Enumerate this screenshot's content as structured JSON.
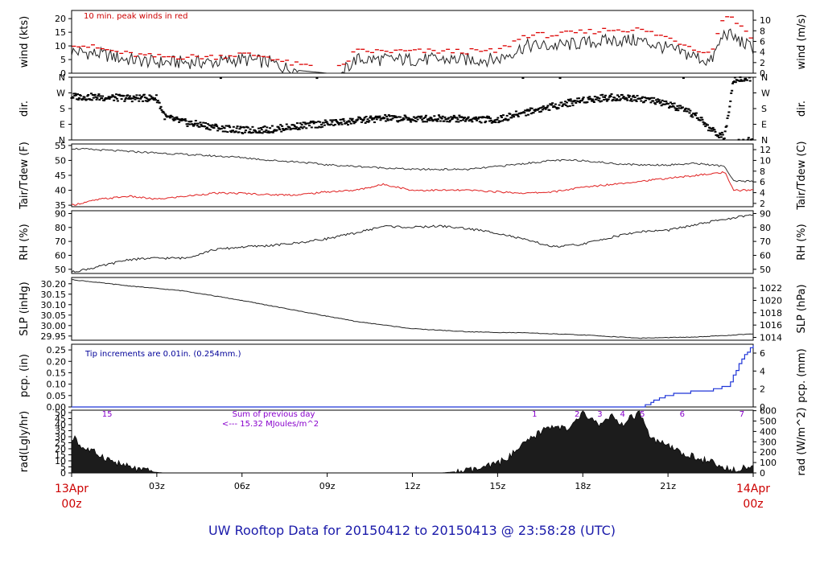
{
  "title": "UW Rooftop Data for 20150412  to  20150413 @ 23:58:28  (UTC)",
  "x_axis": {
    "hour_ticks": [
      "03z",
      "06z",
      "09z",
      "12z",
      "15z",
      "18z",
      "21z"
    ],
    "start_date": "13Apr",
    "start_time": "00z",
    "end_date": "14Apr",
    "end_time": "00z"
  },
  "colors": {
    "frame": "#000000",
    "temp": "#333333",
    "dewpoint": "#e02020",
    "peak": "#dd0000",
    "precip": "#1f35d8",
    "note_purple": "#8800cc",
    "title": "#1a1aaa"
  },
  "chart_data": [
    {
      "id": "wind",
      "type": "line",
      "ylabel": "wind (kts)",
      "ylabel_right": "wind (m/s)",
      "ylim": [
        0,
        23
      ],
      "yticks": [
        0,
        5,
        10,
        15,
        20
      ],
      "yticks_right": [
        "0",
        "2",
        "4",
        "6",
        "8",
        "10"
      ],
      "annotation": "10 min. peak winds in red",
      "x_hours": [
        0,
        1,
        2,
        3,
        4,
        5,
        6,
        7,
        7.5,
        8,
        9,
        9.5,
        10,
        11,
        12,
        13,
        14,
        15,
        16,
        17,
        18,
        19,
        20,
        21,
        22,
        22.5,
        23,
        23.5,
        24
      ],
      "series": [
        {
          "name": "wind",
          "values": [
            8,
            7,
            5,
            4,
            4,
            4,
            5,
            4,
            2,
            1,
            0,
            0,
            5,
            5,
            5,
            5,
            5,
            5,
            10,
            10,
            11,
            12,
            12,
            9,
            6,
            4,
            15,
            12,
            9
          ]
        },
        {
          "name": "peak",
          "values": [
            11,
            9,
            7,
            6,
            6,
            6,
            7,
            6,
            4,
            3,
            2,
            2,
            8,
            8,
            8,
            8,
            8,
            8,
            14,
            14,
            15,
            16,
            16,
            13,
            9,
            7,
            22,
            18,
            13
          ]
        }
      ]
    },
    {
      "id": "direction",
      "type": "scatter",
      "ylabel": "dir.",
      "ylabel_right": "dir.",
      "ytick_labels": [
        "N",
        "E",
        "S",
        "W",
        "N"
      ],
      "ylim": [
        0,
        360
      ],
      "x_hours": [
        0,
        1,
        2,
        3,
        3.3,
        4,
        5,
        6,
        7,
        8,
        9,
        10,
        11,
        12,
        13,
        14,
        15,
        16,
        17,
        18,
        19,
        20,
        21,
        22,
        22.5,
        23,
        23.3,
        24
      ],
      "series": [
        {
          "name": "direction",
          "values": [
            250,
            245,
            240,
            240,
            130,
            100,
            75,
            55,
            60,
            80,
            95,
            110,
            125,
            120,
            125,
            120,
            115,
            160,
            195,
            230,
            245,
            240,
            205,
            140,
            60,
            15,
            350,
            355
          ]
        }
      ]
    },
    {
      "id": "temperature",
      "type": "line",
      "ylabel": "Tair/Tdew (F)",
      "ylabel_right": "Tair/Tdew (C)",
      "ylim": [
        34.5,
        55.5
      ],
      "yticks": [
        35,
        40,
        45,
        50,
        55
      ],
      "yticks_right": [
        "2",
        "4",
        "6",
        "8",
        "10",
        "12"
      ],
      "x_hours": [
        0,
        1,
        2,
        3,
        4,
        5,
        6,
        7,
        8,
        9,
        10,
        11,
        12,
        13,
        14,
        15,
        16,
        17,
        18,
        19,
        20,
        21,
        22,
        23,
        23.3,
        24
      ],
      "series": [
        {
          "name": "Tair",
          "values": [
            54,
            53.5,
            53,
            52.5,
            52,
            51.5,
            51,
            50,
            49.5,
            48.5,
            48,
            47.5,
            47,
            47,
            47,
            48,
            49,
            50,
            50,
            49,
            48.5,
            48.5,
            49,
            48,
            43,
            43
          ]
        },
        {
          "name": "Tdew",
          "values": [
            35,
            37,
            38,
            37,
            38,
            39,
            39,
            38.5,
            38.5,
            39.5,
            40,
            42,
            40,
            40,
            40,
            39.5,
            39,
            39.5,
            41,
            42,
            43,
            44,
            45,
            46,
            40,
            40
          ]
        }
      ]
    },
    {
      "id": "rh",
      "type": "line",
      "ylabel": "RH (%)",
      "ylabel_right": "RH (%)",
      "ylim": [
        47,
        92
      ],
      "yticks": [
        50,
        60,
        70,
        80,
        90
      ],
      "yticks_right": [
        "50",
        "60",
        "70",
        "80",
        "90"
      ],
      "x_hours": [
        0,
        1,
        2,
        3,
        4,
        5,
        6,
        7,
        8,
        9,
        10,
        11,
        12,
        13,
        14,
        15,
        16,
        17,
        18,
        19,
        20,
        21,
        22,
        23,
        24
      ],
      "series": [
        {
          "name": "RH",
          "values": [
            48,
            52,
            57,
            58,
            58,
            64,
            66,
            67,
            69,
            72,
            76,
            81,
            80,
            81,
            79,
            76,
            71,
            66,
            68,
            73,
            77,
            78,
            82,
            86,
            89
          ]
        }
      ]
    },
    {
      "id": "slp",
      "type": "line",
      "ylabel": "SLP (inHg)",
      "ylabel_right": "SLP (hPa)",
      "ylim": [
        29.93,
        30.23
      ],
      "yticks": [
        29.95,
        30.0,
        30.05,
        30.1,
        30.15,
        30.2
      ],
      "yticks_right": [
        "1014",
        "1016",
        "1018",
        "1020",
        "1022"
      ],
      "x_hours": [
        0,
        2,
        4,
        6,
        8,
        10,
        12,
        14,
        16,
        18,
        20,
        22,
        24
      ],
      "series": [
        {
          "name": "SLP",
          "values": [
            30.22,
            30.19,
            30.165,
            30.12,
            30.07,
            30.02,
            29.985,
            29.97,
            29.965,
            29.955,
            29.94,
            29.945,
            29.96
          ]
        }
      ]
    },
    {
      "id": "precip",
      "type": "line",
      "ylabel": "pcp. (in)",
      "ylabel_right": "pcp. (mm)",
      "ylim": [
        0,
        0.275
      ],
      "yticks": [
        0,
        0.05,
        0.1,
        0.15,
        0.2,
        0.25
      ],
      "yticks_right": [
        "0",
        "2",
        "4",
        "6"
      ],
      "annotation": "Tip increments are 0.01in. (0.254mm.)",
      "x_hours": [
        0,
        20.1,
        20.7,
        21.3,
        22.3,
        23.1,
        23.6,
        23.9,
        24
      ],
      "series": [
        {
          "name": "precip",
          "values": [
            0,
            0,
            0.04,
            0.06,
            0.07,
            0.09,
            0.21,
            0.26,
            0.27
          ]
        }
      ]
    },
    {
      "id": "radiation",
      "type": "area",
      "ylabel": "rad(Lgly/hr)",
      "ylabel_right": "rad (W/m^2)",
      "ylim": [
        0,
        52
      ],
      "yticks": [
        0,
        5,
        10,
        15,
        20,
        25,
        30,
        35,
        40,
        45,
        50
      ],
      "yticks_right": [
        "0",
        "100",
        "200",
        "300",
        "400",
        "500",
        "600"
      ],
      "annotation_line1": "Sum of previous day",
      "annotation_line2": "<--- 15.32 MJoules/m^2",
      "hour_labels": [
        "15",
        "1",
        "2",
        "3",
        "4",
        "5",
        "6",
        "7"
      ],
      "hour_label_positions": [
        1.25,
        16.3,
        17.8,
        18.6,
        19.4,
        20.1,
        21.5,
        23.6
      ],
      "x_hours": [
        0,
        0.1,
        0.3,
        0.5,
        1,
        1.5,
        2,
        2.5,
        3,
        3.3,
        13,
        14,
        14.5,
        15,
        15.5,
        16,
        16.5,
        17,
        17.5,
        18,
        18.3,
        18.6,
        19,
        19.3,
        19.6,
        20,
        20.3,
        20.6,
        21,
        21.5,
        22,
        22.5,
        23,
        23.5,
        24
      ],
      "series": [
        {
          "name": "radiation",
          "values": [
            24,
            32,
            22,
            20,
            15,
            9,
            5,
            2,
            0.5,
            0,
            0,
            2,
            4,
            8,
            15,
            25,
            34,
            40,
            35,
            50,
            44,
            40,
            48,
            38,
            44,
            50,
            32,
            26,
            22,
            16,
            13,
            9,
            3,
            4,
            6
          ]
        }
      ]
    }
  ]
}
